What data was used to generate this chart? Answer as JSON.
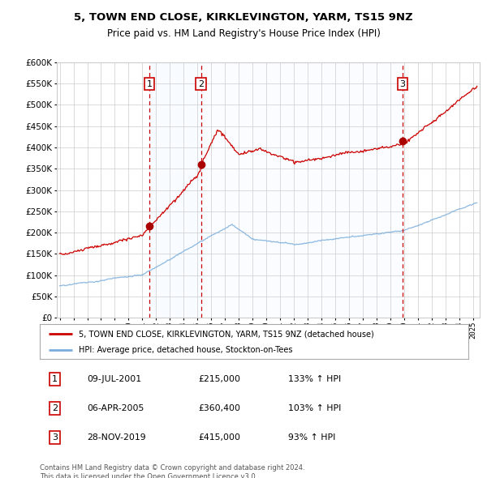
{
  "title1": "5, TOWN END CLOSE, KIRKLEVINGTON, YARM, TS15 9NZ",
  "title2": "Price paid vs. HM Land Registry's House Price Index (HPI)",
  "legend_property": "5, TOWN END CLOSE, KIRKLEVINGTON, YARM, TS15 9NZ (detached house)",
  "legend_hpi": "HPI: Average price, detached house, Stockton-on-Tees",
  "footer1": "Contains HM Land Registry data © Crown copyright and database right 2024.",
  "footer2": "This data is licensed under the Open Government Licence v3.0.",
  "transactions": [
    {
      "num": 1,
      "date": "09-JUL-2001",
      "price": 215000,
      "hpi_pct": "133%",
      "year": 2001.52
    },
    {
      "num": 2,
      "date": "06-APR-2005",
      "price": 360400,
      "hpi_pct": "103%",
      "year": 2005.26
    },
    {
      "num": 3,
      "date": "28-NOV-2019",
      "price": 415000,
      "hpi_pct": "93%",
      "year": 2019.91
    }
  ],
  "ylim": [
    0,
    600000
  ],
  "xlim_start": 1994.8,
  "xlim_end": 2025.5,
  "bg_color": "#ffffff",
  "grid_color": "#cccccc",
  "red_line_color": "#cc0000",
  "blue_line_color": "#7aaddc",
  "shade_color": "#ddeeff",
  "marker_box_color": "#cc0000",
  "dashed_color": "#cc0000"
}
